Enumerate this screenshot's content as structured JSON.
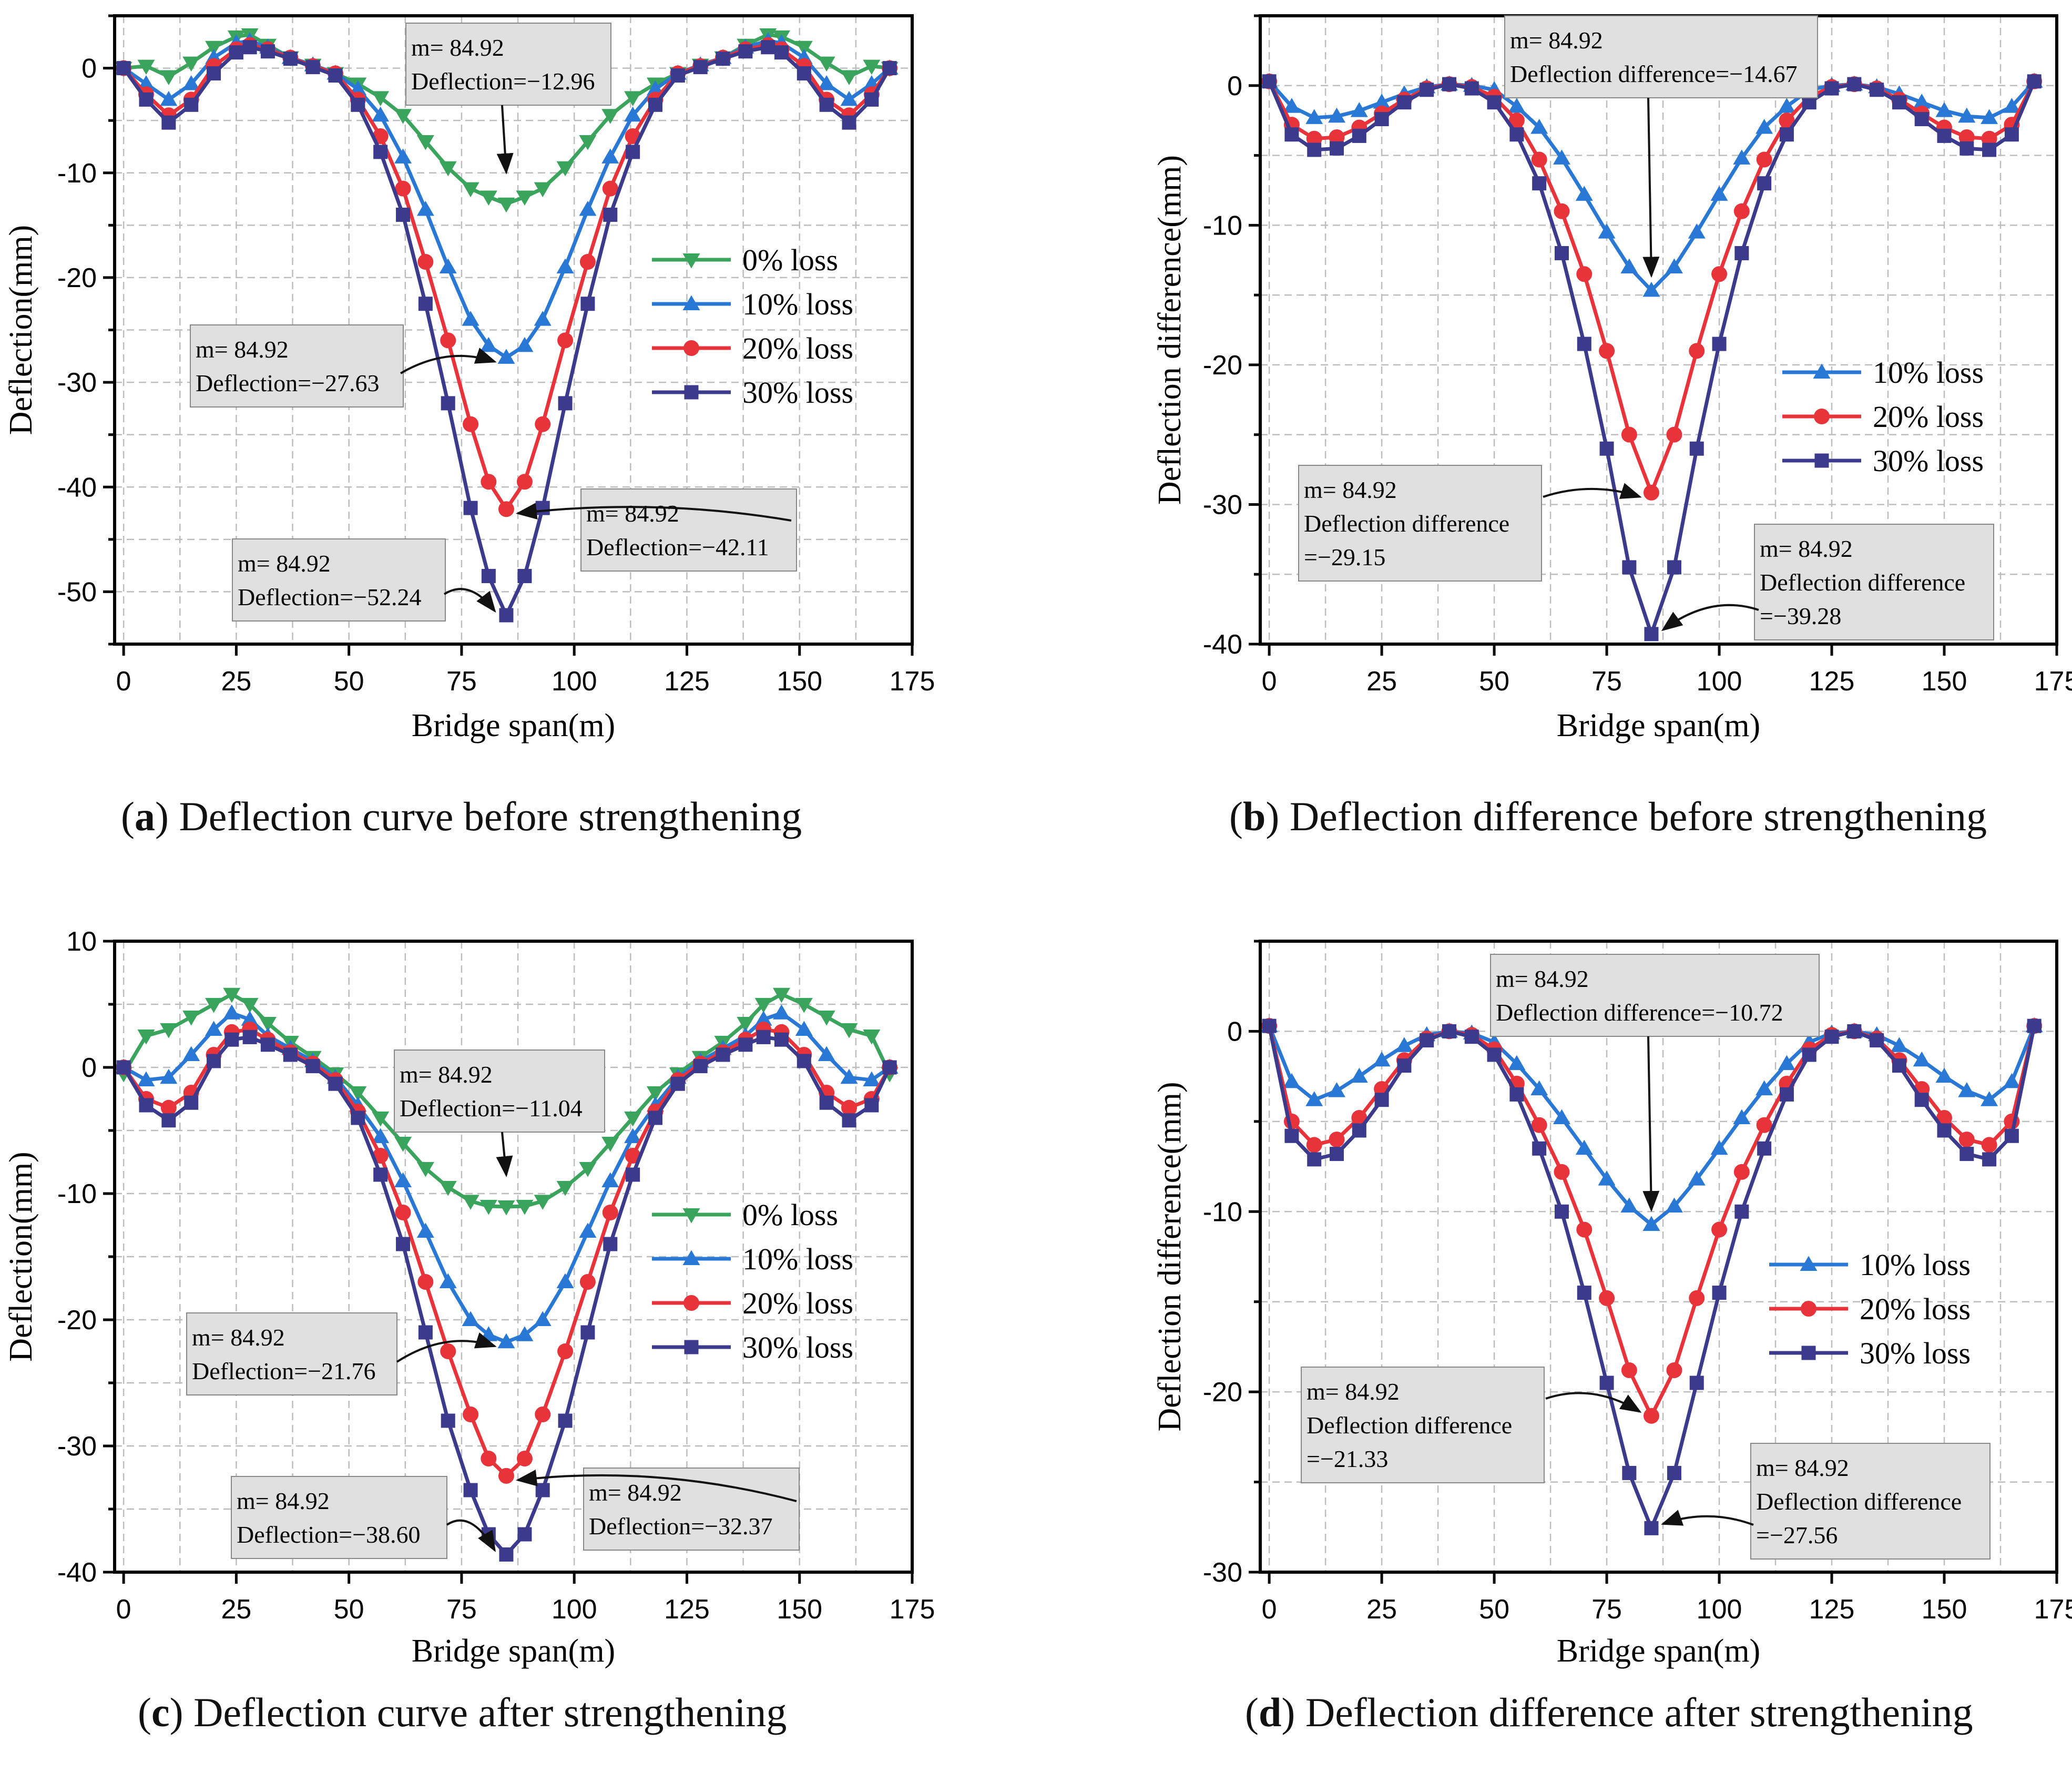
{
  "captions": [
    {
      "letter": "a",
      "text": "Deflection curve before strengthening"
    },
    {
      "letter": "b",
      "text": "Deflection difference before strengthening"
    },
    {
      "letter": "c",
      "text": "Deflection curve after strengthening"
    },
    {
      "letter": "d",
      "text": "Deflection difference after strengthening"
    }
  ],
  "colors": {
    "0%": "#3aa35c",
    "10%": "#2a78d6",
    "20%": "#e8333a",
    "30%": "#3b3a8c"
  },
  "chart_data": [
    {
      "id": "a",
      "type": "line",
      "xlabel": "Bridge span(m)",
      "ylabel": "Deflection(mm)",
      "xlim": [
        -2,
        175
      ],
      "ylim": [
        -55,
        5
      ],
      "xticks": [
        0,
        25,
        50,
        75,
        100,
        125,
        150,
        175
      ],
      "yticks": [
        0,
        -10,
        -20,
        -30,
        -40,
        -50
      ],
      "x": [
        0,
        5,
        10,
        15,
        20,
        25,
        28,
        32,
        37,
        42,
        47,
        52,
        57,
        62,
        67,
        72,
        77,
        81,
        84.92,
        89,
        93,
        98,
        103,
        108,
        113,
        118,
        123,
        128,
        133,
        138,
        143,
        146,
        151,
        156,
        161,
        166,
        170
      ],
      "series": [
        {
          "name": "0%   loss",
          "color": "#3aa35c",
          "marker": "triangle-down",
          "values": [
            0,
            0.2,
            -0.8,
            0.5,
            2.0,
            3.0,
            3.2,
            2.2,
            1.0,
            0.3,
            -0.5,
            -1.5,
            -2.8,
            -4.5,
            -7.0,
            -9.5,
            -11.5,
            -12.3,
            -12.96,
            -12.3,
            -11.5,
            -9.5,
            -7.0,
            -4.5,
            -2.8,
            -1.5,
            -0.5,
            0.3,
            1.0,
            2.2,
            3.2,
            3.0,
            2.0,
            0.5,
            -0.8,
            0.2,
            0
          ]
        },
        {
          "name": "10% loss",
          "color": "#2a78d6",
          "marker": "triangle-up",
          "values": [
            0,
            -1.5,
            -3.0,
            -1.5,
            1.0,
            2.4,
            2.6,
            2.0,
            1.0,
            0.3,
            -0.5,
            -2.0,
            -4.5,
            -8.5,
            -13.5,
            -19.0,
            -24.0,
            -26.5,
            -27.63,
            -26.5,
            -24.0,
            -19.0,
            -13.5,
            -8.5,
            -4.5,
            -2.0,
            -0.5,
            0.3,
            1.0,
            2.0,
            2.6,
            2.4,
            1.0,
            -1.5,
            -3.0,
            -1.5,
            0
          ]
        },
        {
          "name": "20% loss",
          "color": "#e8333a",
          "marker": "circle",
          "values": [
            0,
            -2.5,
            -4.5,
            -3.0,
            0.2,
            1.8,
            2.2,
            1.8,
            1.0,
            0.2,
            -0.5,
            -3.0,
            -6.5,
            -11.5,
            -18.5,
            -26.0,
            -34.0,
            -39.5,
            -42.11,
            -39.5,
            -34.0,
            -26.0,
            -18.5,
            -11.5,
            -6.5,
            -3.0,
            -0.5,
            0.2,
            1.0,
            1.8,
            2.2,
            1.8,
            0.2,
            -3.0,
            -4.5,
            -2.5,
            0
          ]
        },
        {
          "name": "30% loss",
          "color": "#3b3a8c",
          "marker": "square",
          "values": [
            0,
            -3.0,
            -5.2,
            -3.5,
            -0.5,
            1.5,
            2.0,
            1.6,
            0.9,
            0.1,
            -0.7,
            -3.5,
            -8.0,
            -14.0,
            -22.5,
            -32.0,
            -42.0,
            -48.5,
            -52.24,
            -48.5,
            -42.0,
            -32.0,
            -22.5,
            -14.0,
            -8.0,
            -3.5,
            -0.7,
            0.1,
            0.9,
            1.6,
            2.0,
            1.5,
            -0.5,
            -3.5,
            -5.2,
            -3.0,
            0
          ]
        }
      ],
      "legend": "right",
      "annotations": [
        {
          "line1": "m= 84.92",
          "line2": "Deflection=−12.96"
        },
        {
          "line1": "m= 84.92",
          "line2": "Deflection=−27.63"
        },
        {
          "line1": "m= 84.92",
          "line2": "Deflection=−42.11"
        },
        {
          "line1": "m= 84.92",
          "line2": "Deflection=−52.24"
        }
      ]
    },
    {
      "id": "b",
      "type": "line",
      "xlabel": "Bridge span(m)",
      "ylabel": "Deflection difference(mm)",
      "xlim": [
        -2,
        175
      ],
      "ylim": [
        -40,
        5
      ],
      "xticks": [
        0,
        25,
        50,
        75,
        100,
        125,
        150,
        175
      ],
      "yticks": [
        0,
        -10,
        -20,
        -30,
        -40
      ],
      "x": [
        0,
        5,
        10,
        15,
        20,
        25,
        30,
        35,
        40,
        45,
        50,
        55,
        60,
        65,
        70,
        75,
        80,
        84.92,
        90,
        95,
        100,
        105,
        110,
        115,
        120,
        125,
        130,
        135,
        140,
        145,
        150,
        155,
        160,
        165,
        170
      ],
      "series": [
        {
          "name": "10% loss",
          "color": "#2a78d6",
          "marker": "triangle-up",
          "values": [
            0.3,
            -1.5,
            -2.3,
            -2.2,
            -1.8,
            -1.2,
            -0.6,
            -0.1,
            0.1,
            0,
            -0.3,
            -1.5,
            -3.0,
            -5.2,
            -7.8,
            -10.5,
            -13.0,
            -14.67,
            -13.0,
            -10.5,
            -7.8,
            -5.2,
            -3.0,
            -1.5,
            -0.3,
            0,
            0.1,
            -0.1,
            -0.6,
            -1.2,
            -1.8,
            -2.2,
            -2.3,
            -1.5,
            0.3
          ]
        },
        {
          "name": "20% loss",
          "color": "#e8333a",
          "marker": "circle",
          "values": [
            0.3,
            -2.8,
            -3.8,
            -3.7,
            -3.0,
            -2.0,
            -1.0,
            -0.2,
            0.1,
            -0.1,
            -0.8,
            -2.5,
            -5.3,
            -9.0,
            -13.5,
            -19.0,
            -25.0,
            -29.15,
            -25.0,
            -19.0,
            -13.5,
            -9.0,
            -5.3,
            -2.5,
            -0.8,
            -0.1,
            0.1,
            -0.2,
            -1.0,
            -2.0,
            -3.0,
            -3.7,
            -3.8,
            -2.8,
            0.3
          ]
        },
        {
          "name": "30% loss",
          "color": "#3b3a8c",
          "marker": "square",
          "values": [
            0.3,
            -3.5,
            -4.6,
            -4.5,
            -3.6,
            -2.4,
            -1.2,
            -0.3,
            0.1,
            -0.2,
            -1.2,
            -3.5,
            -7.0,
            -12.0,
            -18.5,
            -26.0,
            -34.5,
            -39.28,
            -34.5,
            -26.0,
            -18.5,
            -12.0,
            -7.0,
            -3.5,
            -1.2,
            -0.2,
            0.1,
            -0.3,
            -1.2,
            -2.4,
            -3.6,
            -4.5,
            -4.6,
            -3.5,
            0.3
          ]
        }
      ],
      "legend": "right",
      "annotations": [
        {
          "line1": "m= 84.92",
          "line2": "Deflection difference=−14.67"
        },
        {
          "line1": "m= 84.92",
          "line2": "Deflection difference",
          "line3": "=−29.15"
        },
        {
          "line1": "m= 84.92",
          "line2": "Deflection difference",
          "line3": "=−39.28"
        }
      ]
    },
    {
      "id": "c",
      "type": "line",
      "xlabel": "Bridge span(m)",
      "ylabel": "Deflection(mm)",
      "xlim": [
        -2,
        175
      ],
      "ylim": [
        -40,
        10
      ],
      "xticks": [
        0,
        25,
        50,
        75,
        100,
        125,
        150,
        175
      ],
      "yticks": [
        10,
        0,
        -10,
        -20,
        -30,
        -40
      ],
      "x": [
        0,
        5,
        10,
        15,
        20,
        24,
        28,
        32,
        37,
        42,
        47,
        52,
        57,
        62,
        67,
        72,
        77,
        81,
        84.92,
        89,
        93,
        98,
        103,
        108,
        113,
        118,
        123,
        128,
        133,
        138,
        142,
        146,
        151,
        156,
        161,
        166,
        170
      ],
      "series": [
        {
          "name": "0%   loss",
          "color": "#3aa35c",
          "marker": "triangle-down",
          "values": [
            -0.5,
            2.5,
            3.0,
            4.0,
            5.0,
            5.8,
            5.0,
            3.5,
            2.0,
            0.8,
            -0.5,
            -2.0,
            -4.0,
            -6.0,
            -8.0,
            -9.5,
            -10.6,
            -11.0,
            -11.04,
            -11.0,
            -10.6,
            -9.5,
            -8.0,
            -6.0,
            -4.0,
            -2.0,
            -0.5,
            0.8,
            2.0,
            3.5,
            5.0,
            5.8,
            5.0,
            4.0,
            3.0,
            2.5,
            -0.5
          ]
        },
        {
          "name": "10% loss",
          "color": "#2a78d6",
          "marker": "triangle-up",
          "values": [
            0,
            -1.0,
            -0.8,
            1.0,
            3.0,
            4.3,
            3.8,
            2.5,
            1.5,
            0.5,
            -0.8,
            -3.0,
            -5.5,
            -9.0,
            -13.0,
            -17.0,
            -20.0,
            -21.2,
            -21.76,
            -21.2,
            -20.0,
            -17.0,
            -13.0,
            -9.0,
            -5.5,
            -3.0,
            -0.8,
            0.5,
            1.5,
            2.5,
            3.8,
            4.3,
            3.0,
            1.0,
            -0.8,
            -1.0,
            0
          ]
        },
        {
          "name": "20% loss",
          "color": "#e8333a",
          "marker": "circle",
          "values": [
            0,
            -2.5,
            -3.2,
            -2.0,
            1.0,
            2.8,
            3.0,
            2.2,
            1.2,
            0.3,
            -1.0,
            -3.5,
            -7.0,
            -11.5,
            -17.0,
            -22.5,
            -27.5,
            -31.0,
            -32.37,
            -31.0,
            -27.5,
            -22.5,
            -17.0,
            -11.5,
            -7.0,
            -3.5,
            -1.0,
            0.3,
            1.2,
            2.2,
            3.0,
            2.8,
            1.0,
            -2.0,
            -3.2,
            -2.5,
            0
          ]
        },
        {
          "name": "30% loss",
          "color": "#3b3a8c",
          "marker": "square",
          "values": [
            0,
            -3.0,
            -4.2,
            -2.8,
            0.5,
            2.2,
            2.4,
            1.8,
            1.0,
            0.1,
            -1.3,
            -4.0,
            -8.5,
            -14.0,
            -21.0,
            -28.0,
            -33.5,
            -37.0,
            -38.6,
            -37.0,
            -33.5,
            -28.0,
            -21.0,
            -14.0,
            -8.5,
            -4.0,
            -1.3,
            0.1,
            1.0,
            1.8,
            2.4,
            2.2,
            0.5,
            -2.8,
            -4.2,
            -3.0,
            0
          ]
        }
      ],
      "legend": "right",
      "annotations": [
        {
          "line1": "m= 84.92",
          "line2": "Deflection=−11.04"
        },
        {
          "line1": "m= 84.92",
          "line2": "Deflection=−21.76"
        },
        {
          "line1": "m= 84.92",
          "line2": "Deflection=−32.37"
        },
        {
          "line1": "m= 84.92",
          "line2": "Deflection=−38.60"
        }
      ]
    },
    {
      "id": "d",
      "type": "line",
      "xlabel": "Bridge span(m)",
      "ylabel": "Deflection difference(mm)",
      "xlim": [
        -2,
        175
      ],
      "ylim": [
        -30,
        5
      ],
      "xticks": [
        0,
        25,
        50,
        75,
        100,
        125,
        150,
        175
      ],
      "yticks": [
        0,
        -10,
        -20,
        -30
      ],
      "x": [
        0,
        5,
        10,
        15,
        20,
        25,
        30,
        35,
        40,
        45,
        50,
        55,
        60,
        65,
        70,
        75,
        80,
        84.92,
        90,
        95,
        100,
        105,
        110,
        115,
        120,
        125,
        130,
        135,
        140,
        145,
        150,
        155,
        160,
        165,
        170
      ],
      "series": [
        {
          "name": "10% loss",
          "color": "#2a78d6",
          "marker": "triangle-up",
          "values": [
            0.3,
            -2.8,
            -3.8,
            -3.3,
            -2.5,
            -1.6,
            -0.8,
            -0.2,
            0,
            -0.1,
            -0.6,
            -1.8,
            -3.2,
            -4.8,
            -6.5,
            -8.2,
            -9.7,
            -10.72,
            -9.7,
            -8.2,
            -6.5,
            -4.8,
            -3.2,
            -1.8,
            -0.6,
            -0.1,
            0,
            -0.2,
            -0.8,
            -1.6,
            -2.5,
            -3.3,
            -3.8,
            -2.8,
            0.3
          ]
        },
        {
          "name": "20% loss",
          "color": "#e8333a",
          "marker": "circle",
          "values": [
            0.3,
            -5.0,
            -6.3,
            -6.0,
            -4.8,
            -3.2,
            -1.6,
            -0.4,
            0,
            -0.2,
            -1.0,
            -2.9,
            -5.2,
            -7.8,
            -11.0,
            -14.8,
            -18.8,
            -21.33,
            -18.8,
            -14.8,
            -11.0,
            -7.8,
            -5.2,
            -2.9,
            -1.0,
            -0.2,
            0,
            -0.4,
            -1.6,
            -3.2,
            -4.8,
            -6.0,
            -6.3,
            -5.0,
            0.3
          ]
        },
        {
          "name": "30% loss",
          "color": "#3b3a8c",
          "marker": "square",
          "values": [
            0.3,
            -5.8,
            -7.1,
            -6.8,
            -5.5,
            -3.8,
            -1.9,
            -0.5,
            0,
            -0.3,
            -1.3,
            -3.5,
            -6.5,
            -10.0,
            -14.5,
            -19.5,
            -24.5,
            -27.56,
            -24.5,
            -19.5,
            -14.5,
            -10.0,
            -6.5,
            -3.5,
            -1.3,
            -0.3,
            0,
            -0.5,
            -1.9,
            -3.8,
            -5.5,
            -6.8,
            -7.1,
            -5.8,
            0.3
          ]
        }
      ],
      "legend": "right",
      "annotations": [
        {
          "line1": "m= 84.92",
          "line2": "Deflection difference=−10.72"
        },
        {
          "line1": "m= 84.92",
          "line2": "Deflection difference",
          "line3": "=−21.33"
        },
        {
          "line1": "m= 84.92",
          "line2": "Deflection difference",
          "line3": "=−27.56"
        }
      ]
    }
  ]
}
